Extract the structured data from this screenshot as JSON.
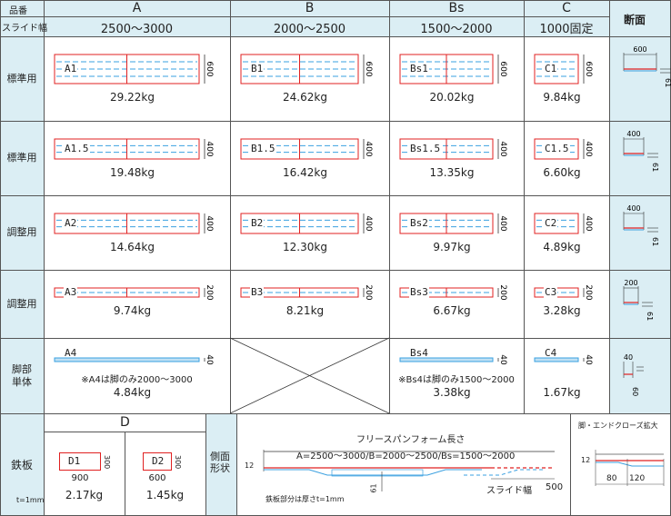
{
  "header": {
    "hinban": "品番",
    "slide_width": "スライド幅",
    "section": "断面",
    "cols": [
      {
        "code": "A",
        "range": "2500〜3000"
      },
      {
        "code": "B",
        "range": "2000〜2500"
      },
      {
        "code": "Bs",
        "range": "1500〜2000"
      },
      {
        "code": "C",
        "range": "1000固定"
      }
    ]
  },
  "rows": [
    {
      "label": "標準用",
      "height": "600",
      "items": [
        {
          "code": "A1",
          "weight": "29.22kg"
        },
        {
          "code": "B1",
          "weight": "24.62kg"
        },
        {
          "code": "Bs1",
          "weight": "20.02kg"
        },
        {
          "code": "C1",
          "weight": "9.84kg"
        }
      ],
      "section": {
        "width": "600",
        "height": "61"
      }
    },
    {
      "label": "標準用",
      "height": "400",
      "items": [
        {
          "code": "A1.5",
          "weight": "19.48kg"
        },
        {
          "code": "B1.5",
          "weight": "16.42kg"
        },
        {
          "code": "Bs1.5",
          "weight": "13.35kg"
        },
        {
          "code": "C1.5",
          "weight": "6.60kg"
        }
      ],
      "section": {
        "width": "400",
        "height": "61"
      }
    },
    {
      "label": "調整用",
      "height": "400",
      "items": [
        {
          "code": "A2",
          "weight": "14.64kg"
        },
        {
          "code": "B2",
          "weight": "12.30kg"
        },
        {
          "code": "Bs2",
          "weight": "9.97kg"
        },
        {
          "code": "C2",
          "weight": "4.89kg"
        }
      ],
      "section": {
        "width": "400",
        "height": "61"
      }
    },
    {
      "label": "調整用",
      "height": "200",
      "items": [
        {
          "code": "A3",
          "weight": "9.74kg"
        },
        {
          "code": "B3",
          "weight": "8.21kg"
        },
        {
          "code": "Bs3",
          "weight": "6.67kg"
        },
        {
          "code": "C3",
          "weight": "3.28kg"
        }
      ],
      "section": {
        "width": "200",
        "height": "61"
      }
    },
    {
      "label": "脚部\n単体",
      "height": "40",
      "items": [
        {
          "code": "A4",
          "weight": "4.84kg",
          "note": "※A4は脚のみ2000〜3000"
        },
        {
          "code": "",
          "weight": ""
        },
        {
          "code": "Bs4",
          "weight": "3.38kg",
          "note": "※Bs4は脚のみ1500〜2000"
        },
        {
          "code": "C4",
          "weight": "1.67kg"
        }
      ],
      "section": {
        "width": "40",
        "height": "60"
      }
    }
  ],
  "plate": {
    "label": "鉄板",
    "thickness": "t=1mm",
    "group": "D",
    "items": [
      {
        "code": "D1",
        "width": "900",
        "height": "300",
        "weight": "2.17kg"
      },
      {
        "code": "D2",
        "width": "600",
        "height": "300",
        "weight": "1.45kg"
      }
    ]
  },
  "side": {
    "label": "側面\n形状",
    "title": "フリースパンフォーム長さ",
    "formula": "A=2500〜3000/B=2000〜2500/Bs=1500〜2000",
    "slide": "スライド幅",
    "slide_val": "500",
    "h12": "12",
    "h61": "61",
    "note": "鉄板部分は厚さt=1mm"
  },
  "zoom": {
    "title": "脚・エンドクローズ拡大",
    "h12": "12",
    "w80": "80",
    "w120": "120"
  },
  "colors": {
    "header_bg": "#dbeef4",
    "red": "#e02020",
    "blue": "#3aa0e0"
  }
}
